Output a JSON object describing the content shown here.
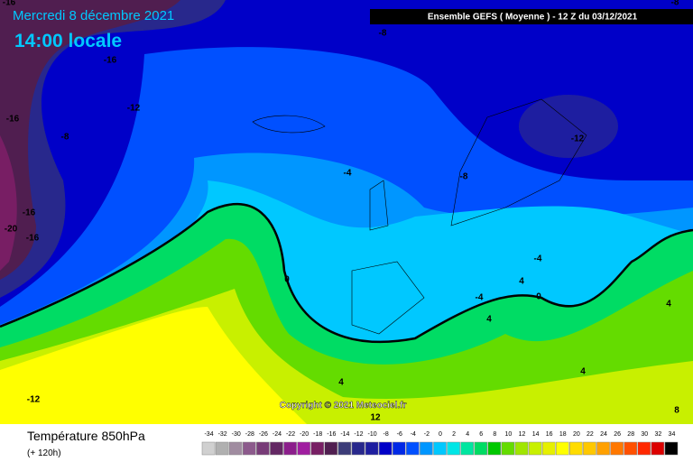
{
  "header": {
    "date": "Mercredi 8 décembre 2021",
    "time": "14:00 locale",
    "model": "Ensemble GEFS  ( Moyenne )  - 12 Z du 03/12/2021"
  },
  "map": {
    "copyright": "Copyright © 2021 Meteociel.fr",
    "contour_labels": [
      "-16",
      "-16",
      "-16",
      "-12",
      "-8",
      "-16",
      "-20",
      "-16",
      "-8",
      "-8",
      "-12",
      "-4",
      "0",
      "-4",
      "-4",
      "4",
      "0",
      "4",
      "4",
      "4",
      "4",
      "-12",
      "12",
      "8",
      "-8"
    ]
  },
  "legend": {
    "title": "Température 850hPa",
    "lead": "(+ 120h)",
    "labels": [
      "-34",
      "-32",
      "-30",
      "-28",
      "-26",
      "-24",
      "-22",
      "-20",
      "-18",
      "-16",
      "-14",
      "-12",
      "-10",
      "-8",
      "-6",
      "-4",
      "-2",
      "0",
      "2",
      "4",
      "6",
      "8",
      "10",
      "12",
      "14",
      "16",
      "18",
      "20",
      "22",
      "24",
      "26",
      "28",
      "30",
      "32",
      "34"
    ],
    "colors": [
      "#d0d0d0",
      "#b0b0b0",
      "#a08ca0",
      "#8c5a8c",
      "#783c78",
      "#642864",
      "#8c1e8c",
      "#a01ea0",
      "#781e64",
      "#501e50",
      "#3c3c78",
      "#28288c",
      "#1e1ea0",
      "#0000c8",
      "#0028e6",
      "#0050ff",
      "#0096ff",
      "#00c8ff",
      "#00e6e6",
      "#00e6a0",
      "#00dc64",
      "#00c800",
      "#64dc00",
      "#a0e600",
      "#c8f000",
      "#e6f000",
      "#ffff00",
      "#ffdc00",
      "#ffc800",
      "#ffa000",
      "#ff7800",
      "#ff5000",
      "#ff2800",
      "#dc0000",
      "#000000"
    ]
  }
}
